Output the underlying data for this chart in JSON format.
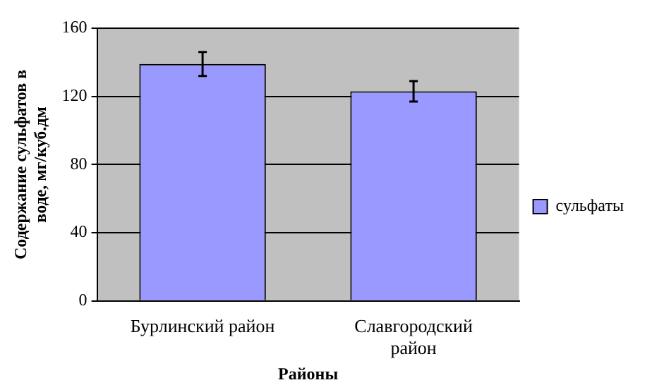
{
  "chart_data": {
    "type": "bar",
    "xlabel": "Районы",
    "ylabel": "Содержание сульфатов в воде, мг/куб.дм",
    "categories": [
      "Бурлинский район",
      "Славгородский район"
    ],
    "series": [
      {
        "name": "сульфаты",
        "color": "#9999ff",
        "values": [
          139,
          123
        ],
        "errors": [
          7,
          6
        ]
      }
    ],
    "ylim": [
      0,
      160
    ],
    "yticks": [
      0,
      40,
      80,
      120,
      160
    ],
    "grid": "y",
    "legend": "right"
  }
}
